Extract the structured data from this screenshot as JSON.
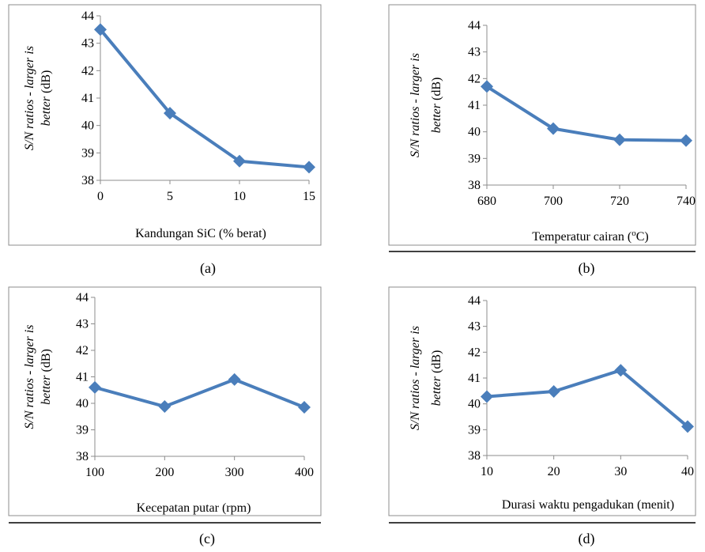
{
  "chart_data": [
    {
      "id": "a",
      "type": "line",
      "caption": "(a)",
      "x": [
        0,
        5,
        10,
        15
      ],
      "x_ticks": [
        "0",
        "5",
        "10",
        "15"
      ],
      "series": [
        {
          "values": [
            43.5,
            40.45,
            38.7,
            38.48
          ]
        }
      ],
      "xlabel": "Kandungan SiC (% berat)",
      "ylabel_italic": "S/N ratios - larger is",
      "ylabel_line2_italic": "better",
      "ylabel_line2_unit": " (dB)",
      "ylim": [
        38,
        44
      ],
      "y_ticks": [
        "38",
        "39",
        "40",
        "41",
        "42",
        "43",
        "44"
      ],
      "grid": false,
      "color": "#4a7ebb"
    },
    {
      "id": "b",
      "type": "line",
      "caption": "(b)",
      "x": [
        680,
        700,
        720,
        740
      ],
      "x_ticks": [
        "680",
        "700",
        "720",
        "740"
      ],
      "series": [
        {
          "values": [
            41.7,
            40.12,
            39.7,
            39.67
          ]
        }
      ],
      "xlabel": "Temperatur cairan (",
      "xlabel_sup": "o",
      "xlabel_end": "C)",
      "ylabel_italic": "S/N ratios - larger is",
      "ylabel_line2_italic": "better",
      "ylabel_line2_unit": " (dB)",
      "ylim": [
        38,
        44
      ],
      "y_ticks": [
        "38",
        "39",
        "40",
        "41",
        "42",
        "43",
        "44"
      ],
      "grid": false,
      "color": "#4a7ebb"
    },
    {
      "id": "c",
      "type": "line",
      "caption": "(c)",
      "x": [
        100,
        200,
        300,
        400
      ],
      "x_ticks": [
        "100",
        "200",
        "300",
        "400"
      ],
      "series": [
        {
          "values": [
            40.6,
            39.88,
            40.9,
            39.85
          ]
        }
      ],
      "xlabel": "Kecepatan putar (rpm)",
      "ylabel_italic": "S/N ratios - larger is",
      "ylabel_line2_italic": "better",
      "ylabel_line2_unit": " (dB)",
      "ylim": [
        38,
        44
      ],
      "y_ticks": [
        "38",
        "39",
        "40",
        "41",
        "42",
        "43",
        "44"
      ],
      "grid": false,
      "color": "#4a7ebb"
    },
    {
      "id": "d",
      "type": "line",
      "caption": "(d)",
      "x": [
        10,
        20,
        30,
        40
      ],
      "x_ticks": [
        "10",
        "20",
        "30",
        "40"
      ],
      "series": [
        {
          "values": [
            40.28,
            40.48,
            41.3,
            39.12
          ]
        }
      ],
      "xlabel": "Durasi waktu pengadukan (menit)",
      "ylabel_italic": "S/N ratios - larger is",
      "ylabel_line2_italic": "better",
      "ylabel_line2_unit": " (dB)",
      "ylim": [
        38,
        44
      ],
      "y_ticks": [
        "38",
        "39",
        "40",
        "41",
        "42",
        "43",
        "44"
      ],
      "grid": false,
      "color": "#4a7ebb"
    }
  ]
}
